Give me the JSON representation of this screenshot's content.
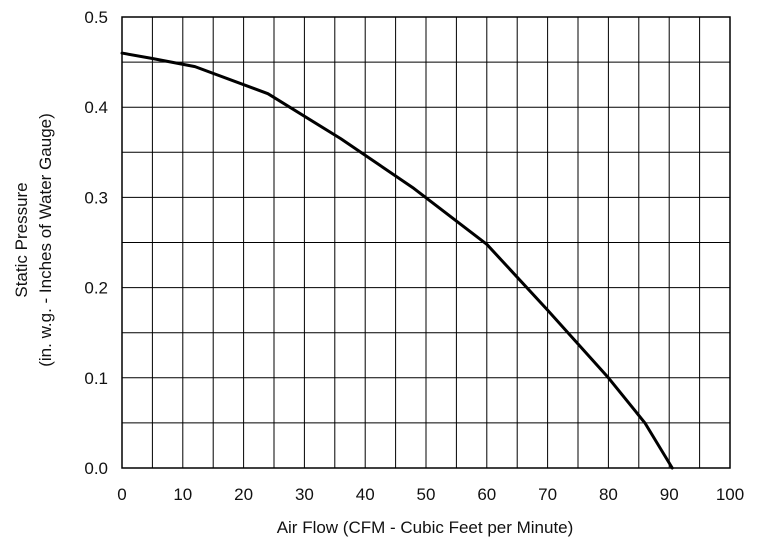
{
  "chart_data": {
    "type": "line",
    "title": "",
    "xlabel": "Air Flow (CFM - Cubic Feet per Minute)",
    "ylabel": [
      "Static Pressure",
      "(in. w.g. - Inches of Water Gauge)"
    ],
    "xlim": [
      0,
      100
    ],
    "ylim": [
      0,
      0.5
    ],
    "x_ticks": [
      "0",
      "10",
      "20",
      "30",
      "40",
      "50",
      "60",
      "70",
      "80",
      "90",
      "100"
    ],
    "y_ticks": [
      "0.0",
      "0.1",
      "0.2",
      "0.3",
      "0.4",
      "0.5"
    ],
    "grid": true,
    "grid_x_step": 5,
    "grid_y_step": 0.05,
    "series": [
      {
        "x": [
          0,
          5,
          12,
          24,
          36,
          48,
          60,
          70,
          80,
          86,
          90.5
        ],
        "y": [
          0.46,
          0.454,
          0.445,
          0.415,
          0.365,
          0.31,
          0.248,
          0.175,
          0.1,
          0.05,
          0.0
        ],
        "color": "#000000"
      }
    ]
  }
}
